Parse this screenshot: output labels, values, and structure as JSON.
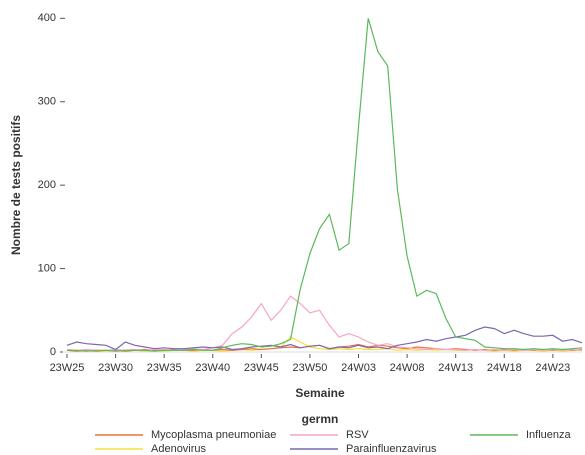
{
  "chart_data": {
    "type": "line",
    "x_label": "Semaine",
    "y_label": "Nombre de tests positifs",
    "legend_title": "germn",
    "categories": [
      "23W25",
      null,
      null,
      null,
      null,
      "23W30",
      null,
      null,
      null,
      null,
      "23W35",
      null,
      null,
      null,
      null,
      "23W40",
      null,
      null,
      null,
      null,
      "23W45",
      null,
      null,
      null,
      null,
      "23W50",
      null,
      null,
      null,
      null,
      "24W03",
      null,
      null,
      null,
      null,
      "24W08",
      null,
      null,
      null,
      null,
      "24W13",
      null,
      null,
      null,
      null,
      "24W18",
      null,
      null,
      null,
      null,
      "24W23",
      null,
      null,
      null
    ],
    "ylim": [
      0,
      410
    ],
    "yticks": [
      0,
      100,
      200,
      300,
      400
    ],
    "series": [
      {
        "name": "Mycoplasma pneumoniae",
        "color": "#e8743b",
        "values": [
          2,
          1,
          2,
          1,
          2,
          2,
          1,
          2,
          3,
          2,
          2,
          3,
          2,
          2,
          3,
          2,
          3,
          2,
          3,
          4,
          3,
          4,
          5,
          6,
          5,
          7,
          8,
          4,
          6,
          7,
          9,
          6,
          8,
          7,
          5,
          4,
          6,
          5,
          4,
          3,
          4,
          3,
          2,
          3,
          2,
          3,
          2,
          3,
          2,
          3,
          2,
          3,
          2,
          3
        ]
      },
      {
        "name": "RSV",
        "color": "#f4a6c8",
        "values": [
          3,
          2,
          3,
          2,
          2,
          3,
          2,
          3,
          2,
          3,
          3,
          2,
          3,
          4,
          3,
          5,
          8,
          22,
          30,
          42,
          58,
          38,
          50,
          67,
          58,
          47,
          50,
          32,
          18,
          22,
          18,
          12,
          8,
          10,
          6,
          5,
          4,
          3,
          4,
          3,
          3,
          2,
          3,
          2,
          3,
          2,
          3,
          2,
          3,
          2,
          3,
          2,
          3,
          2
        ]
      },
      {
        "name": "Influenza",
        "color": "#5cb85c",
        "values": [
          2,
          2,
          1,
          2,
          2,
          1,
          2,
          2,
          2,
          1,
          2,
          2,
          2,
          3,
          2,
          2,
          5,
          8,
          10,
          9,
          6,
          7,
          10,
          15,
          75,
          118,
          148,
          165,
          122,
          130,
          270,
          400,
          360,
          343,
          195,
          115,
          67,
          74,
          70,
          40,
          18,
          16,
          14,
          6,
          5,
          4,
          4,
          3,
          4,
          3,
          4,
          3,
          4,
          5
        ]
      },
      {
        "name": "Adenovirus",
        "color": "#f2e03a",
        "values": [
          2,
          1,
          2,
          1,
          1,
          2,
          1,
          2,
          1,
          2,
          1,
          2,
          2,
          1,
          2,
          2,
          1,
          2,
          3,
          2,
          3,
          4,
          6,
          18,
          12,
          6,
          4,
          3,
          4,
          3,
          4,
          3,
          3,
          4,
          2,
          3,
          2,
          3,
          2,
          3,
          2,
          2,
          3,
          2,
          1,
          2,
          1,
          2,
          2,
          1,
          2,
          1,
          2,
          2
        ]
      },
      {
        "name": "Parainfluenzavirus",
        "color": "#7b68b0",
        "values": [
          8,
          12,
          10,
          9,
          8,
          3,
          12,
          8,
          6,
          4,
          5,
          4,
          4,
          5,
          6,
          5,
          6,
          3,
          4,
          6,
          7,
          8,
          6,
          9,
          5,
          7,
          8,
          4,
          6,
          5,
          8,
          5,
          6,
          4,
          8,
          10,
          12,
          15,
          13,
          16,
          18,
          20,
          26,
          30,
          28,
          22,
          26,
          22,
          19,
          19,
          20,
          13,
          15,
          11
        ]
      }
    ]
  }
}
